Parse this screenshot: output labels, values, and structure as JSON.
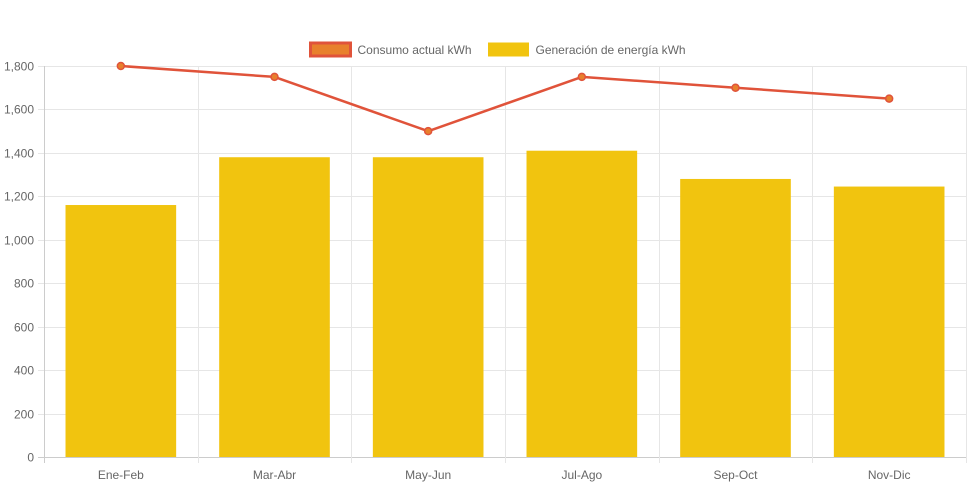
{
  "chart_data": {
    "type": "bar",
    "categories": [
      "Ene-Feb",
      "Mar-Abr",
      "May-Jun",
      "Jul-Ago",
      "Sep-Oct",
      "Nov-Dic"
    ],
    "series": [
      {
        "name": "Consumo actual kWh",
        "kind": "line",
        "color": "#e0533a",
        "fill": "#e8802c",
        "values": [
          1800,
          1750,
          1500,
          1750,
          1700,
          1650
        ]
      },
      {
        "name": "Generación de energía kWh",
        "kind": "bar",
        "color": "#f1c40f",
        "values": [
          1160,
          1380,
          1380,
          1410,
          1280,
          1245
        ]
      }
    ],
    "ylim": [
      0,
      1800
    ],
    "yticks": [
      "0",
      "200",
      "400",
      "600",
      "800",
      "1,000",
      "1,200",
      "1,400",
      "1,600",
      "1,800"
    ],
    "grid": true,
    "legend": "top"
  }
}
